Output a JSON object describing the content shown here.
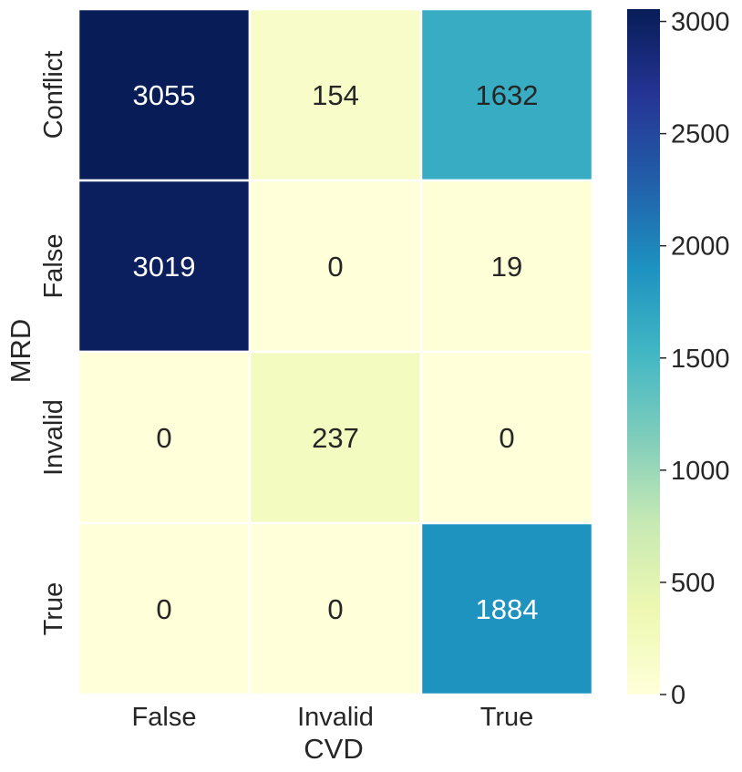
{
  "chart_data": {
    "type": "heatmap",
    "title": "",
    "xlabel": "CVD",
    "ylabel": "MRD",
    "x_categories": [
      "False",
      "Invalid",
      "True"
    ],
    "y_categories": [
      "Conflict",
      "False",
      "Invalid",
      "True"
    ],
    "values": [
      [
        3055,
        154,
        1632
      ],
      [
        3019,
        0,
        19
      ],
      [
        0,
        237,
        0
      ],
      [
        0,
        0,
        1884
      ]
    ],
    "colormap": "YlGnBu",
    "vmin": 0,
    "vmax": 3055,
    "colorbar_ticks": [
      0,
      500,
      1000,
      1500,
      2000,
      2500,
      3000
    ],
    "colors": {
      "stops": [
        "#ffffd9",
        "#edf8b1",
        "#c7e9b4",
        "#7fcdbb",
        "#41b6c4",
        "#1d91c0",
        "#225ea8",
        "#253494",
        "#081d58"
      ],
      "dark_text": "#262626",
      "light_text": "#ffffff"
    }
  }
}
